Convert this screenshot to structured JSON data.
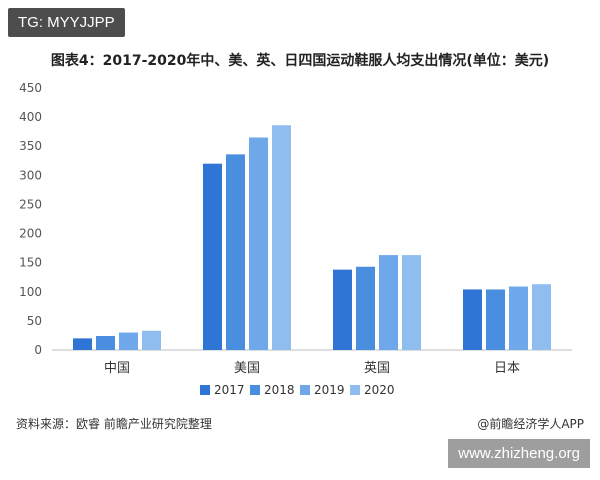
{
  "watermark_tag": "TG: MYYJJPP",
  "title": "图表4：2017-2020年中、美、英、日四国运动鞋服人均支出情况(单位：美元)",
  "footer": {
    "source": "资料来源：欧睿 前瞻产业研究院整理",
    "credit": "@前瞻经济学人APP"
  },
  "site_tag": "www.zhizheng.org",
  "chart_data": {
    "type": "bar",
    "title": "图表4：2017-2020年中、美、英、日四国运动鞋服人均支出情况(单位：美元)",
    "categories": [
      "中国",
      "美国",
      "英国",
      "日本"
    ],
    "series": [
      {
        "name": "2017",
        "values": [
          20,
          320,
          138,
          104
        ],
        "color": "#2e75d6"
      },
      {
        "name": "2018",
        "values": [
          24,
          336,
          143,
          104
        ],
        "color": "#4a8ee0"
      },
      {
        "name": "2019",
        "values": [
          30,
          365,
          163,
          109
        ],
        "color": "#6fa8ea"
      },
      {
        "name": "2020",
        "values": [
          33,
          386,
          163,
          113
        ],
        "color": "#8fbdf0"
      }
    ],
    "ylim": [
      0,
      450
    ],
    "yticks": [
      0,
      50,
      100,
      150,
      200,
      250,
      300,
      350,
      400,
      450
    ],
    "grid": false,
    "legend": "bottom"
  }
}
